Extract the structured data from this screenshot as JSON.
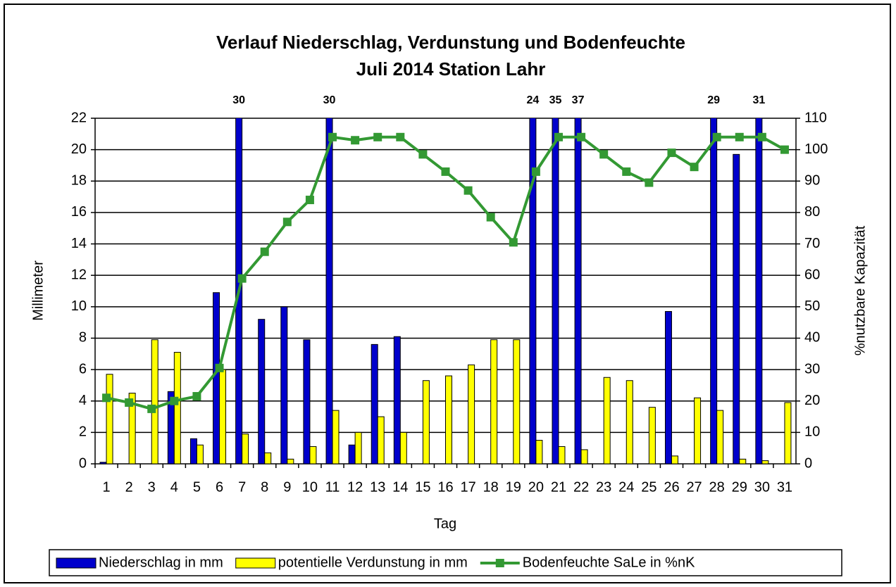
{
  "chart_data": {
    "type": "bar",
    "title": "Verlauf Niederschlag, Verdunstung und Bodenfeuchte",
    "subtitle": "Juli 2014 Station Lahr",
    "x_label": "Tag",
    "y_label": "Millimeter",
    "y2_label": "%nutzbare Kapazität",
    "categories": [
      "1",
      "2",
      "3",
      "4",
      "5",
      "6",
      "7",
      "8",
      "9",
      "10",
      "11",
      "12",
      "13",
      "14",
      "15",
      "16",
      "17",
      "18",
      "19",
      "20",
      "21",
      "22",
      "23",
      "24",
      "25",
      "26",
      "27",
      "28",
      "29",
      "30",
      "31"
    ],
    "series": [
      {
        "name": "Niederschlag in mm",
        "color": "#0000cc",
        "type": "bar",
        "values": [
          0.1,
          0,
          0,
          4.6,
          1.6,
          10.9,
          30,
          9.2,
          10,
          7.9,
          30,
          1.2,
          7.6,
          8.1,
          0,
          0,
          0,
          0,
          0,
          24,
          35,
          37,
          0,
          0,
          0,
          9.7,
          0,
          29,
          19.7,
          31,
          0
        ]
      },
      {
        "name": "potentielle Verdunstung in mm",
        "color": "#ffff00",
        "type": "bar",
        "values": [
          5.7,
          4.5,
          7.9,
          7.1,
          1.2,
          6.0,
          1.9,
          0.7,
          0.3,
          1.1,
          3.4,
          2.0,
          3.0,
          2.0,
          5.3,
          5.6,
          6.3,
          7.9,
          7.9,
          1.5,
          1.1,
          0.9,
          5.5,
          5.3,
          3.6,
          0.5,
          4.2,
          3.4,
          0.3,
          0.2,
          3.9
        ]
      },
      {
        "name": "Bodenfeuchte SaLe in %nK",
        "color": "#339933",
        "type": "line",
        "axis": "y2",
        "values": [
          21,
          19.5,
          17.5,
          20,
          21.5,
          30.5,
          59,
          67.5,
          77,
          84,
          104,
          103,
          104,
          104,
          98.5,
          93,
          87,
          78.5,
          70.5,
          93,
          104,
          104,
          98.5,
          93,
          89.5,
          99,
          94.5,
          104,
          104,
          104,
          100
        ]
      }
    ],
    "ylim": [
      0,
      22
    ],
    "yticks": [
      0,
      2,
      4,
      6,
      8,
      10,
      12,
      14,
      16,
      18,
      20,
      22
    ],
    "y2lim": [
      0,
      110
    ],
    "y2ticks": [
      0,
      10,
      20,
      30,
      40,
      50,
      60,
      70,
      80,
      90,
      100,
      110
    ],
    "grid": true,
    "legend": "bottom"
  }
}
